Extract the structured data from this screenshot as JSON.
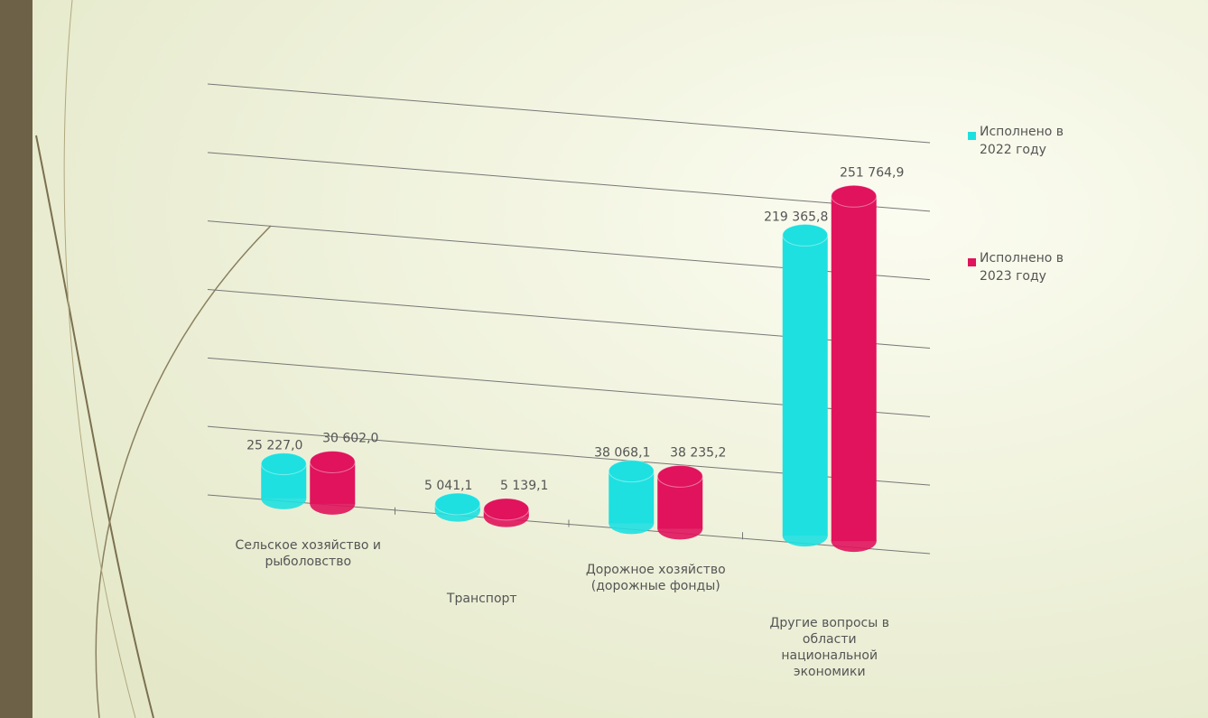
{
  "chart_data": {
    "type": "bar",
    "categories": [
      "Сельское хозяйство и рыболовство",
      "Транспорт",
      "Дорожное хозяйство (дорожные фонды)",
      "Другие вопросы в области национальной экономики"
    ],
    "series": [
      {
        "name": "Исполнено в 2022 году",
        "color": "#1ee0e0",
        "values": [
          25227.0,
          5041.1,
          38068.1,
          219365.8
        ],
        "value_labels": [
          "25 227,0",
          "5 041,1",
          "38 068,1",
          "219 365,8"
        ]
      },
      {
        "name": "Исполнено в 2023 году",
        "color": "#e0135c",
        "values": [
          30602.0,
          5139.1,
          38235.2,
          251764.9
        ],
        "value_labels": [
          "30 602,0",
          "5 139,1",
          "38 235,2",
          "251 764,9"
        ]
      }
    ],
    "ylim": [
      0,
      300000
    ],
    "yticks": [
      0,
      50000,
      100000,
      150000,
      200000,
      250000,
      300000
    ],
    "grid": true,
    "tick_labels": false,
    "legend": "right"
  }
}
